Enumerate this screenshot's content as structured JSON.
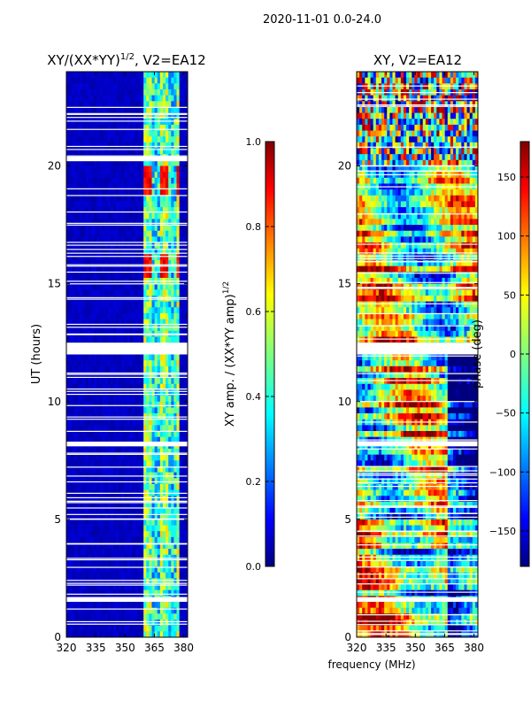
{
  "figure_title": "2020-11-01 0.0-24.0",
  "colors": {
    "jet": [
      "#00007f",
      "#0000ff",
      "#007fff",
      "#00ffff",
      "#7fff7f",
      "#ffff00",
      "#ff7f00",
      "#ff0000",
      "#7f0000"
    ],
    "gap": "#ffffff",
    "axis": "#000000"
  },
  "chart_data": [
    {
      "type": "heatmap",
      "title": "XY/(XX*YY)$^{1/2}$, V2=EA12",
      "title_main": "XY/(XX*YY)",
      "title_sup": "1/2",
      "title_tail": ", V2=EA12",
      "xlabel": "",
      "ylabel": "UT (hours)",
      "xlim": [
        320,
        382
      ],
      "ylim": [
        0,
        24
      ],
      "xticks": [
        320,
        335,
        350,
        365,
        380
      ],
      "yticks": [
        0,
        5,
        10,
        15,
        20
      ],
      "colorbar": {
        "label_main": "XY amp. / (XX*YY amp)",
        "label_sup": "1/2",
        "range": [
          0.0,
          1.0
        ],
        "ticks": [
          "0.0",
          "0.2",
          "0.4",
          "0.6",
          "0.8",
          "1.0"
        ],
        "tick_values": [
          0.0,
          0.2,
          0.4,
          0.6,
          0.8,
          1.0
        ]
      },
      "description_values": {
        "background_level": 0.04,
        "active_band_mhz": [
          359,
          378
        ],
        "active_band_level": 0.5,
        "high_epochs_ut": [
          [
            18.8,
            20.1
          ],
          [
            15.2,
            16.3
          ]
        ],
        "high_level": 0.88
      },
      "data_gaps_ut": [
        [
          12.0,
          12.5
        ],
        [
          20.2,
          20.4
        ],
        [
          8.1,
          8.3
        ],
        [
          1.5,
          1.7
        ]
      ]
    },
    {
      "type": "heatmap",
      "title": "XY, V2=EA12",
      "xlabel": "frequency (MHz)",
      "ylabel": "",
      "xlim": [
        320,
        382
      ],
      "ylim": [
        0,
        24
      ],
      "xticks": [
        320,
        335,
        350,
        365,
        380
      ],
      "yticks": [
        0,
        5,
        10,
        15,
        20
      ],
      "colorbar": {
        "label": "phase (deg)",
        "range": [
          -180,
          180
        ],
        "ticks": [
          "150",
          "100",
          "50",
          "0",
          "−50",
          "−100",
          "−150"
        ],
        "tick_values": [
          150,
          100,
          50,
          0,
          -50,
          -100,
          -150
        ]
      },
      "data_gaps_ut": [
        [
          12.0,
          12.5
        ],
        [
          8.1,
          8.3
        ],
        [
          1.5,
          1.7
        ]
      ]
    }
  ]
}
